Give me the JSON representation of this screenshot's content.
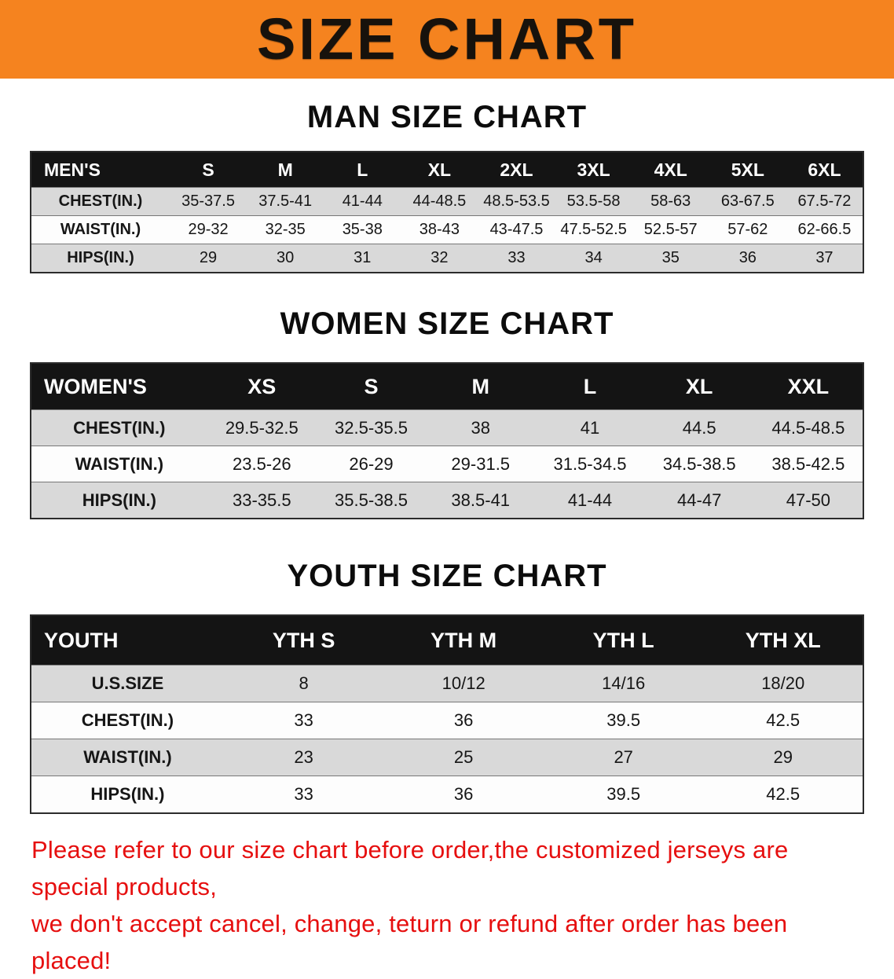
{
  "banner": {
    "title": "SIZE CHART",
    "bg_color": "#f5831f",
    "text_color": "#17120c"
  },
  "sections": [
    {
      "heading": "MAN SIZE CHART",
      "table": {
        "header": [
          "MEN'S",
          "S",
          "M",
          "L",
          "XL",
          "2XL",
          "3XL",
          "4XL",
          "5XL",
          "6XL"
        ],
        "rows": [
          [
            "CHEST(IN.)",
            "35-37.5",
            "37.5-41",
            "41-44",
            "44-48.5",
            "48.5-53.5",
            "53.5-58",
            "58-63",
            "63-67.5",
            "67.5-72"
          ],
          [
            "WAIST(IN.)",
            "29-32",
            "32-35",
            "35-38",
            "38-43",
            "43-47.5",
            "47.5-52.5",
            "52.5-57",
            "57-62",
            "62-66.5"
          ],
          [
            "HIPS(IN.)",
            "29",
            "30",
            "31",
            "32",
            "33",
            "34",
            "35",
            "36",
            "37"
          ]
        ]
      }
    },
    {
      "heading": "WOMEN SIZE CHART",
      "table": {
        "header": [
          "WOMEN'S",
          "XS",
          "S",
          "M",
          "L",
          "XL",
          "XXL"
        ],
        "rows": [
          [
            "CHEST(IN.)",
            "29.5-32.5",
            "32.5-35.5",
            "38",
            "41",
            "44.5",
            "44.5-48.5"
          ],
          [
            "WAIST(IN.)",
            "23.5-26",
            "26-29",
            "29-31.5",
            "31.5-34.5",
            "34.5-38.5",
            "38.5-42.5"
          ],
          [
            "HIPS(IN.)",
            "33-35.5",
            "35.5-38.5",
            "38.5-41",
            "41-44",
            "44-47",
            "47-50"
          ]
        ]
      }
    },
    {
      "heading": "YOUTH SIZE CHART",
      "table": {
        "header": [
          "YOUTH",
          "YTH S",
          "YTH M",
          "YTH L",
          "YTH XL"
        ],
        "rows": [
          [
            "U.S.SIZE",
            "8",
            "10/12",
            "14/16",
            "18/20"
          ],
          [
            "CHEST(IN.)",
            "33",
            "36",
            "39.5",
            "42.5"
          ],
          [
            "WAIST(IN.)",
            "23",
            "25",
            "27",
            "29"
          ],
          [
            "HIPS(IN.)",
            "33",
            "36",
            "39.5",
            "42.5"
          ]
        ]
      }
    }
  ],
  "note": {
    "line1": "Please refer to our size chart before order,the customized jerseys are special products,",
    "line2": "we don't accept cancel, change, teturn or refund after order has been placed!",
    "color": "#e60f0f"
  },
  "colors": {
    "banner_orange": "#f5831f",
    "table_header_black": "#141414",
    "row_gray": "#d9d9d9",
    "row_white": "#fdfdfd",
    "note_red": "#e60f0f"
  }
}
